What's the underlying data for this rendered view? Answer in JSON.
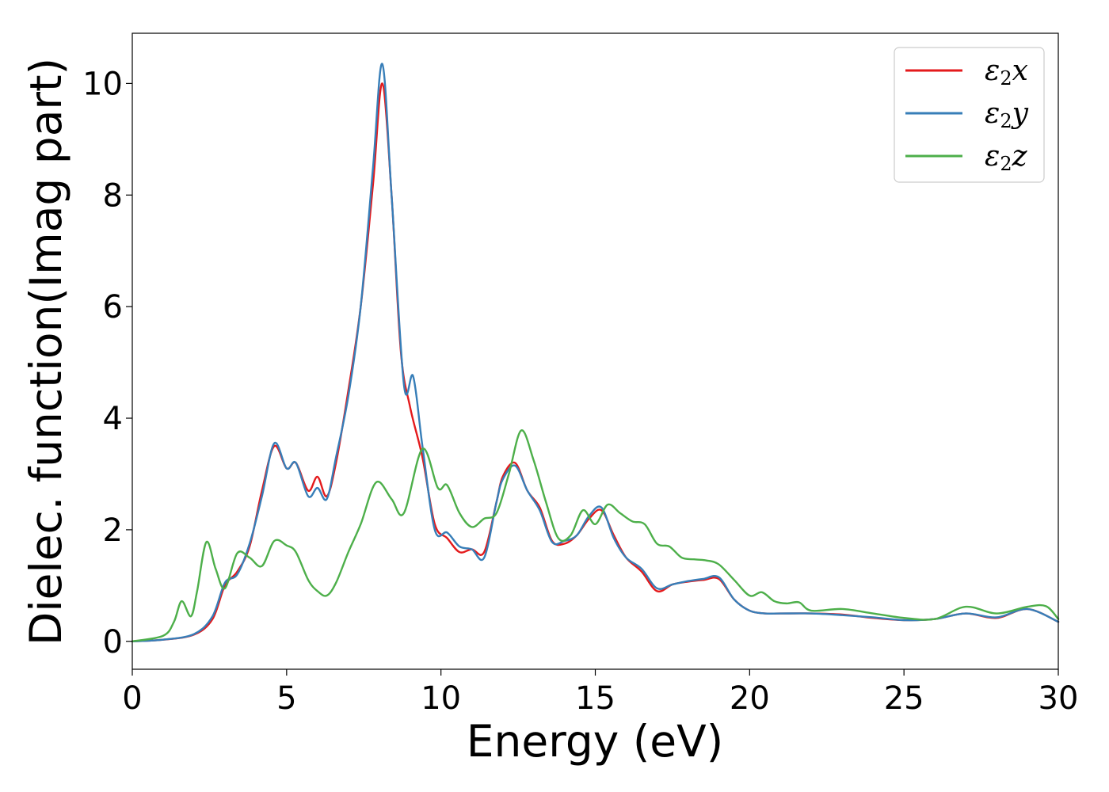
{
  "chart_data": {
    "type": "line",
    "xlabel": "Energy (eV)",
    "ylabel": "Dielec. function(Imag part)",
    "xlim": [
      0,
      30
    ],
    "ylim": [
      -0.5,
      10.9
    ],
    "xticks": [
      0,
      5,
      10,
      15,
      20,
      25,
      30
    ],
    "yticks": [
      0,
      2,
      4,
      6,
      8,
      10
    ],
    "grid": false,
    "legend_position": "top-right",
    "series": [
      {
        "name": "ε2x",
        "legend": {
          "base": "ε",
          "sub": "2",
          "suffix": "x"
        },
        "color": "#e41a1c",
        "x": [
          0,
          1,
          2,
          2.6,
          3.0,
          3.4,
          3.8,
          4.2,
          4.6,
          5.0,
          5.3,
          5.7,
          6.0,
          6.3,
          6.6,
          7.0,
          7.4,
          7.8,
          8.1,
          8.4,
          8.7,
          9.0,
          9.4,
          9.8,
          10.2,
          10.6,
          11.0,
          11.4,
          11.8,
          12.0,
          12.4,
          12.8,
          13.2,
          13.6,
          14.0,
          14.4,
          14.8,
          15.2,
          15.6,
          16.0,
          16.5,
          17.0,
          17.5,
          18.0,
          18.5,
          19.0,
          19.5,
          20.0,
          20.5,
          21.0,
          22,
          23,
          24,
          25,
          26,
          27,
          28,
          29,
          30
        ],
        "y": [
          0,
          0.03,
          0.12,
          0.4,
          1.0,
          1.25,
          1.7,
          2.7,
          3.5,
          3.1,
          3.2,
          2.7,
          2.95,
          2.6,
          3.2,
          4.5,
          6.0,
          8.2,
          10.0,
          8.0,
          5.2,
          4.2,
          3.3,
          2.1,
          1.85,
          1.6,
          1.65,
          1.6,
          2.5,
          2.95,
          3.2,
          2.7,
          2.4,
          1.8,
          1.75,
          1.9,
          2.2,
          2.35,
          1.9,
          1.5,
          1.25,
          0.9,
          1.02,
          1.07,
          1.1,
          1.12,
          0.75,
          0.55,
          0.5,
          0.5,
          0.5,
          0.48,
          0.42,
          0.38,
          0.4,
          0.5,
          0.42,
          0.58,
          0.35
        ]
      },
      {
        "name": "ε2y",
        "legend": {
          "base": "ε",
          "sub": "2",
          "suffix": "y"
        },
        "color": "#377eb8",
        "x": [
          0,
          1,
          2,
          2.6,
          3.0,
          3.4,
          3.8,
          4.2,
          4.6,
          5.0,
          5.3,
          5.7,
          6.0,
          6.3,
          6.6,
          7.0,
          7.4,
          7.8,
          8.1,
          8.4,
          8.8,
          9.1,
          9.4,
          9.8,
          10.2,
          10.6,
          11.0,
          11.4,
          11.8,
          12.0,
          12.4,
          12.8,
          13.2,
          13.6,
          14.0,
          14.4,
          14.8,
          15.2,
          15.6,
          16.0,
          16.5,
          17.0,
          17.5,
          18.0,
          18.5,
          19.0,
          19.5,
          20.0,
          20.5,
          21.0,
          22,
          23,
          24,
          25,
          26,
          27,
          28,
          29,
          30
        ],
        "y": [
          0,
          0.03,
          0.13,
          0.45,
          1.05,
          1.2,
          1.75,
          2.6,
          3.55,
          3.1,
          3.2,
          2.6,
          2.75,
          2.55,
          3.3,
          4.4,
          6.0,
          8.5,
          10.35,
          8.0,
          4.6,
          4.75,
          3.5,
          2.0,
          1.95,
          1.7,
          1.65,
          1.5,
          2.5,
          2.9,
          3.15,
          2.7,
          2.35,
          1.78,
          1.8,
          1.9,
          2.25,
          2.4,
          1.85,
          1.5,
          1.3,
          0.95,
          1.02,
          1.08,
          1.12,
          1.15,
          0.75,
          0.55,
          0.5,
          0.5,
          0.5,
          0.47,
          0.43,
          0.38,
          0.4,
          0.5,
          0.43,
          0.58,
          0.35
        ]
      },
      {
        "name": "ε2z",
        "legend": {
          "base": "ε",
          "sub": "2",
          "suffix": "z"
        },
        "color": "#4daf4a",
        "x": [
          0,
          1.0,
          1.35,
          1.6,
          1.9,
          2.1,
          2.4,
          2.7,
          3.0,
          3.4,
          3.8,
          4.2,
          4.6,
          5.0,
          5.3,
          5.7,
          6.0,
          6.3,
          6.6,
          7.0,
          7.4,
          7.9,
          8.4,
          8.8,
          9.4,
          9.9,
          10.2,
          10.6,
          11.0,
          11.4,
          11.8,
          12.2,
          12.6,
          13.0,
          13.4,
          13.8,
          14.2,
          14.6,
          15.0,
          15.4,
          15.8,
          16.2,
          16.6,
          17.0,
          17.4,
          17.8,
          18.2,
          18.6,
          19.0,
          19.5,
          20.0,
          20.4,
          20.8,
          21.2,
          21.6,
          22,
          23,
          24,
          25,
          26,
          27,
          28,
          29,
          29.6,
          30
        ],
        "y": [
          0,
          0.1,
          0.35,
          0.72,
          0.45,
          0.9,
          1.78,
          1.3,
          0.95,
          1.58,
          1.5,
          1.35,
          1.8,
          1.72,
          1.6,
          1.1,
          0.9,
          0.82,
          1.05,
          1.6,
          2.1,
          2.85,
          2.55,
          2.3,
          3.45,
          2.75,
          2.8,
          2.3,
          2.05,
          2.2,
          2.3,
          3.0,
          3.78,
          3.25,
          2.5,
          1.85,
          1.9,
          2.35,
          2.1,
          2.45,
          2.3,
          2.15,
          2.1,
          1.75,
          1.7,
          1.5,
          1.47,
          1.45,
          1.38,
          1.1,
          0.82,
          0.88,
          0.72,
          0.68,
          0.7,
          0.55,
          0.58,
          0.5,
          0.42,
          0.4,
          0.62,
          0.5,
          0.62,
          0.63,
          0.4
        ]
      }
    ]
  }
}
